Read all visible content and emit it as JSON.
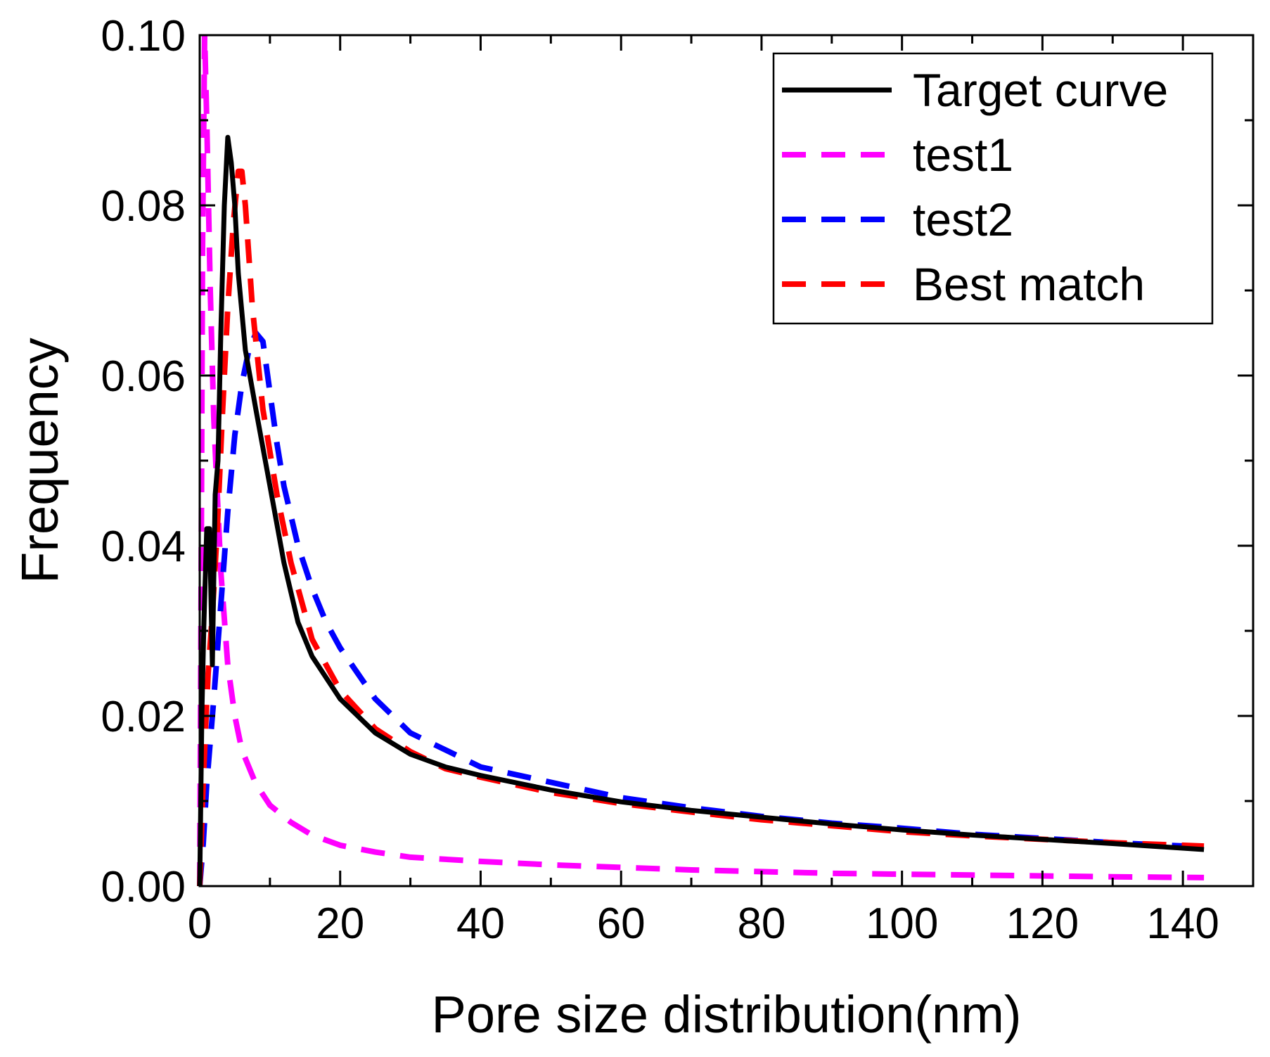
{
  "chart_data": {
    "type": "line",
    "title": "",
    "xlabel": "Pore size distribution(nm)",
    "ylabel": "Frequency",
    "xlim": [
      0,
      150
    ],
    "ylim": [
      0,
      0.1
    ],
    "x_ticks": [
      "0",
      "20",
      "40",
      "60",
      "80",
      "100",
      "120",
      "140"
    ],
    "y_ticks": [
      "0.00",
      "0.02",
      "0.04",
      "0.06",
      "0.08",
      "0.10"
    ],
    "grid": false,
    "legend_position": "top-right",
    "series": [
      {
        "name": "Target curve",
        "color": "#000000",
        "style": "solid",
        "x": [
          0,
          0.3,
          0.6,
          1.0,
          1.4,
          1.8,
          2.2,
          2.6,
          3.0,
          3.5,
          4.0,
          4.5,
          5.0,
          5.5,
          6.5,
          8,
          10,
          12,
          14,
          16,
          20,
          25,
          30,
          35,
          40,
          50,
          60,
          70,
          80,
          90,
          100,
          110,
          120,
          130,
          143
        ],
        "values": [
          0.0,
          0.02,
          0.031,
          0.042,
          0.042,
          0.026,
          0.046,
          0.05,
          0.065,
          0.08,
          0.088,
          0.085,
          0.08,
          0.072,
          0.063,
          0.056,
          0.047,
          0.038,
          0.031,
          0.027,
          0.022,
          0.018,
          0.0155,
          0.014,
          0.013,
          0.0113,
          0.0099,
          0.0089,
          0.0081,
          0.0073,
          0.0066,
          0.006,
          0.0055,
          0.005,
          0.0043
        ]
      },
      {
        "name": "test1",
        "color": "#ff00ff",
        "style": "dashed",
        "x": [
          0,
          0.2,
          0.4,
          0.7,
          1.0,
          1.5,
          2.0,
          3.0,
          4.0,
          5.0,
          6.0,
          8,
          10,
          13,
          16,
          20,
          25,
          30,
          40,
          50,
          60,
          70,
          80,
          90,
          100,
          110,
          120,
          130,
          143
        ],
        "values": [
          0.0,
          0.035,
          0.075,
          0.1,
          0.09,
          0.07,
          0.055,
          0.037,
          0.026,
          0.02,
          0.016,
          0.012,
          0.0095,
          0.0075,
          0.006,
          0.0048,
          0.004,
          0.0034,
          0.0029,
          0.0025,
          0.0022,
          0.0019,
          0.0017,
          0.0015,
          0.0014,
          0.0013,
          0.0012,
          0.0011,
          0.001
        ]
      },
      {
        "name": "test2",
        "color": "#0000ff",
        "style": "dashed",
        "x": [
          0,
          0.5,
          1.0,
          2.0,
          3.0,
          4.0,
          5.0,
          6.0,
          7.0,
          8.0,
          9.0,
          10,
          11,
          12,
          14,
          16,
          18,
          20,
          25,
          30,
          40,
          50,
          60,
          70,
          80,
          90,
          100,
          110,
          120,
          130,
          143
        ],
        "values": [
          0.0,
          0.005,
          0.012,
          0.022,
          0.033,
          0.044,
          0.053,
          0.059,
          0.063,
          0.065,
          0.064,
          0.058,
          0.052,
          0.047,
          0.04,
          0.035,
          0.031,
          0.028,
          0.022,
          0.018,
          0.014,
          0.0122,
          0.0104,
          0.0092,
          0.0082,
          0.0074,
          0.0068,
          0.0061,
          0.0056,
          0.0051,
          0.0046
        ]
      },
      {
        "name": "Best match",
        "color": "#ff0000",
        "style": "dashed",
        "x": [
          0,
          0.4,
          0.8,
          1.2,
          1.8,
          2.5,
          3.2,
          4.0,
          4.8,
          5.5,
          6.0,
          6.5,
          7.5,
          9,
          11,
          13,
          16,
          20,
          25,
          30,
          35,
          40,
          50,
          60,
          70,
          80,
          90,
          100,
          110,
          120,
          130,
          143
        ],
        "values": [
          0.0,
          0.01,
          0.018,
          0.025,
          0.032,
          0.042,
          0.055,
          0.068,
          0.078,
          0.084,
          0.084,
          0.08,
          0.068,
          0.056,
          0.046,
          0.038,
          0.029,
          0.023,
          0.0185,
          0.0158,
          0.0138,
          0.0128,
          0.011,
          0.0097,
          0.0087,
          0.0078,
          0.0071,
          0.0064,
          0.0059,
          0.0055,
          0.0051,
          0.0047
        ]
      }
    ]
  }
}
